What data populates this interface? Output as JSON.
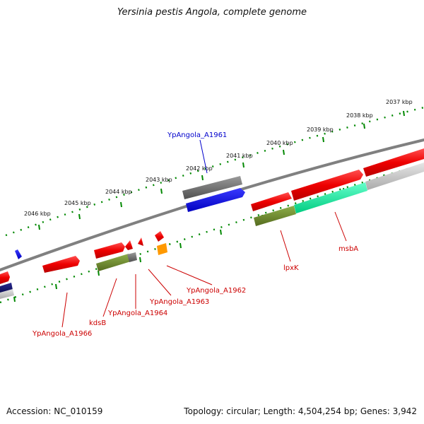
{
  "title": "Yersinia pestis Angola, complete genome",
  "footer": {
    "accession_label": "Accession:",
    "accession": "NC_010159",
    "topology_label": "Topology:",
    "topology": "circular",
    "length_label": "Length:",
    "length": "4,504,254 bp",
    "genes_label": "Genes:",
    "genes": "3,942"
  },
  "ruler_labels": [
    "2037 kbp",
    "2038 kbp",
    "2039 kbp",
    "2040 kbp",
    "2041 kbp",
    "2042 kbp",
    "2043 kbp",
    "2044 kbp",
    "2045 kbp",
    "2046 kbp"
  ],
  "feature_labels": [
    {
      "text": "YpAngola_A1961",
      "color": "#0000cc"
    },
    {
      "text": "lpxK",
      "color": "#cc0000"
    },
    {
      "text": "msbA",
      "color": "#cc0000"
    },
    {
      "text": "YpAngola_A1962",
      "color": "#cc0000"
    },
    {
      "text": "YpAngola_A1963",
      "color": "#cc0000"
    },
    {
      "text": "YpAngola_A1964",
      "color": "#cc0000"
    },
    {
      "text": "kdsB",
      "color": "#cc0000"
    },
    {
      "text": "YpAngola_A1966",
      "color": "#cc0000"
    }
  ],
  "colors": {
    "cds_red": "#ee0000",
    "gene_olive": "#6b8e23",
    "gene_teal": "#00ee99",
    "gray_feature": "#707070",
    "blue_feature": "#0000ee",
    "orange_feature": "#ff9900",
    "ruler_ticks": "#008800",
    "backbone": "#808080"
  }
}
